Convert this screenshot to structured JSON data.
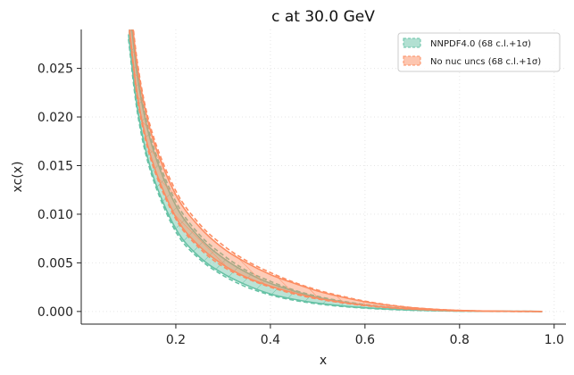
{
  "chart_data": {
    "type": "area",
    "title": "c at 30.0 GeV",
    "xlabel": "x",
    "ylabel": "xc(x)",
    "xlim": [
      0.0,
      1.025
    ],
    "ylim": [
      -0.0013,
      0.029
    ],
    "xticks": [
      0.2,
      0.4,
      0.6,
      0.8,
      1.0
    ],
    "xtick_labels": [
      "0.2",
      "0.4",
      "0.6",
      "0.8",
      "1.0"
    ],
    "yticks": [
      0.0,
      0.005,
      0.01,
      0.015,
      0.02,
      0.025
    ],
    "ytick_labels": [
      "0.000",
      "0.005",
      "0.010",
      "0.015",
      "0.020",
      "0.025"
    ],
    "grid": true,
    "legend_position": "top-right",
    "x": [
      0.1,
      0.12,
      0.15,
      0.2,
      0.25,
      0.3,
      0.35,
      0.4,
      0.45,
      0.5,
      0.55,
      0.6,
      0.65,
      0.7,
      0.75,
      0.8,
      0.85,
      0.9,
      0.95,
      0.975
    ],
    "series": [
      {
        "name": "NNPDF4.0 (68 c.l.+1σ)",
        "color": "#66c2a5",
        "lower_68": [
          0.0285,
          0.0205,
          0.0142,
          0.0085,
          0.0056,
          0.0039,
          0.0027,
          0.0018,
          0.00125,
          0.00085,
          0.00058,
          0.00038,
          0.00024,
          0.00014,
          8e-05,
          4e-05,
          2e-05,
          1e-05,
          5e-06,
          0.0
        ],
        "upper_68": [
          0.0325,
          0.0238,
          0.017,
          0.0109,
          0.0076,
          0.0055,
          0.004,
          0.0029,
          0.0021,
          0.00145,
          0.001,
          0.00066,
          0.00042,
          0.00025,
          0.00014,
          8e-05,
          4e-05,
          2e-05,
          1e-05,
          0.0
        ],
        "lower_1sigma": [
          0.028,
          0.0201,
          0.0139,
          0.0082,
          0.0054,
          0.0037,
          0.0025,
          0.0017,
          0.00115,
          0.00078,
          0.00052,
          0.00034,
          0.00021,
          0.00012,
          7e-05,
          3e-05,
          1e-05,
          5e-06,
          0.0,
          0.0
        ],
        "upper_1sigma": [
          0.033,
          0.0242,
          0.0174,
          0.0113,
          0.0079,
          0.0058,
          0.0042,
          0.0031,
          0.0022,
          0.00155,
          0.00107,
          0.00071,
          0.00045,
          0.00027,
          0.00015,
          8e-05,
          4e-05,
          2e-05,
          1e-05,
          0.0
        ]
      },
      {
        "name": "No nuc uncs (68 c.l.+1σ)",
        "color": "#fc8d62",
        "lower_68": [
          0.03,
          0.0218,
          0.0155,
          0.0097,
          0.0067,
          0.0048,
          0.0035,
          0.0026,
          0.0019,
          0.00135,
          0.00095,
          0.00064,
          0.00041,
          0.00025,
          0.00014,
          7e-05,
          3e-05,
          1e-05,
          5e-06,
          0.0
        ],
        "upper_68": [
          0.0335,
          0.0248,
          0.018,
          0.012,
          0.0087,
          0.0065,
          0.005,
          0.0038,
          0.0029,
          0.0021,
          0.0015,
          0.001,
          0.00064,
          0.00038,
          0.00021,
          0.00011,
          5e-05,
          2e-05,
          1e-05,
          0.0
        ],
        "lower_1sigma": [
          0.0296,
          0.0215,
          0.0152,
          0.0095,
          0.0065,
          0.0046,
          0.0034,
          0.0025,
          0.0018,
          0.00128,
          0.0009,
          0.0006,
          0.00038,
          0.00023,
          0.00013,
          6e-05,
          3e-05,
          1e-05,
          0.0,
          0.0
        ],
        "upper_1sigma": [
          0.034,
          0.0252,
          0.0184,
          0.0124,
          0.009,
          0.0068,
          0.0052,
          0.004,
          0.003,
          0.0022,
          0.00158,
          0.00106,
          0.00068,
          0.0004,
          0.00022,
          0.00011,
          5e-05,
          2e-05,
          1e-05,
          0.0
        ]
      }
    ]
  }
}
